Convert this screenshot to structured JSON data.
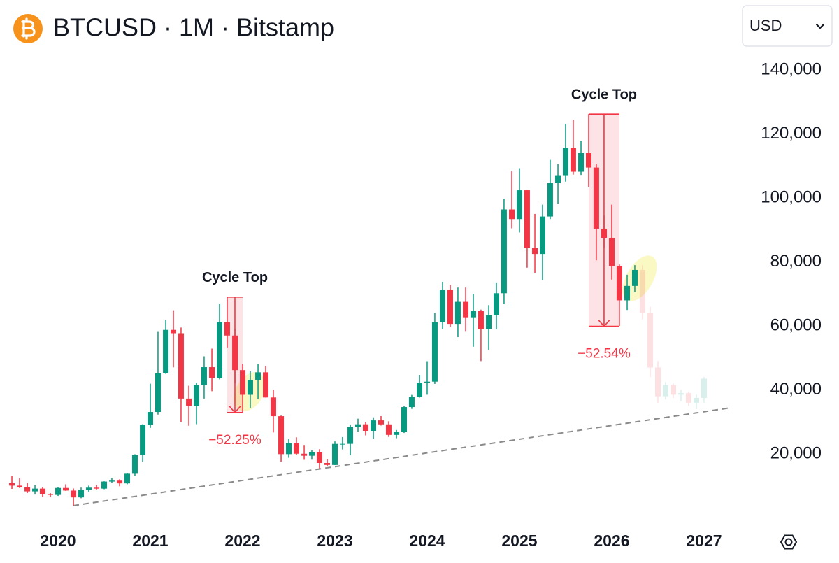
{
  "chart_data": {
    "type": "candlestick",
    "title": "BTCUSD · 1M · Bitstamp",
    "currency": "USD",
    "up_color": "#089981",
    "down_color": "#f23645",
    "xlim": [
      2019.371,
      2027.326
    ],
    "xticks": [
      2020,
      2021,
      2022,
      2023,
      2024,
      2025,
      2026,
      2027
    ],
    "ylim": [
      0,
      145000
    ],
    "yticks": [
      {
        "value": 20000,
        "label": "20,000"
      },
      {
        "value": 40000,
        "label": "40,000"
      },
      {
        "value": 60000,
        "label": "60,000"
      },
      {
        "value": 80000,
        "label": "80,000"
      },
      {
        "value": 100000,
        "label": "100,000"
      },
      {
        "value": 120000,
        "label": "120,000"
      },
      {
        "value": 140000,
        "label": "140,000"
      }
    ],
    "x": [
      2019.5,
      2019.583,
      2019.667,
      2019.75,
      2019.833,
      2019.917,
      2020.0,
      2020.083,
      2020.167,
      2020.25,
      2020.333,
      2020.417,
      2020.5,
      2020.583,
      2020.667,
      2020.75,
      2020.833,
      2020.917,
      2021.0,
      2021.083,
      2021.167,
      2021.25,
      2021.333,
      2021.417,
      2021.5,
      2021.583,
      2021.667,
      2021.75,
      2021.833,
      2021.917,
      2022.0,
      2022.083,
      2022.167,
      2022.25,
      2022.333,
      2022.417,
      2022.5,
      2022.583,
      2022.667,
      2022.75,
      2022.833,
      2022.917,
      2023.0,
      2023.083,
      2023.167,
      2023.25,
      2023.333,
      2023.417,
      2023.5,
      2023.583,
      2023.667,
      2023.75,
      2023.833,
      2023.917,
      2024.0,
      2024.083,
      2024.167,
      2024.25,
      2024.333,
      2024.417,
      2024.5,
      2024.583,
      2024.667,
      2024.75,
      2024.833,
      2024.917,
      2025.0,
      2025.083,
      2025.167,
      2025.25,
      2025.333,
      2025.417,
      2025.5,
      2025.583,
      2025.667,
      2025.75,
      2025.833,
      2025.917,
      2026.0,
      2026.083,
      2026.167,
      2026.25
    ],
    "open": [
      10820,
      10080,
      9590,
      8290,
      9150,
      7540,
      7190,
      9350,
      8540,
      6410,
      8630,
      9450,
      9140,
      11350,
      11650,
      10780,
      13800,
      19700,
      28990,
      33110,
      45160,
      58760,
      57720,
      37300,
      35040,
      41500,
      47100,
      43800,
      61300,
      57000,
      46200,
      38480,
      43180,
      45500,
      37640,
      31790,
      19930,
      23300,
      20050,
      19420,
      20490,
      17160,
      16540,
      23120,
      23140,
      28470,
      29250,
      27220,
      30480,
      29230,
      25940,
      26960,
      34640,
      37720,
      42280,
      42580,
      61170,
      71330,
      60640,
      67530,
      62700,
      64620,
      58970,
      63330,
      70220,
      96400,
      93400,
      102400,
      84300,
      82500,
      94200,
      104600,
      107100,
      115700,
      108200,
      114000,
      109500,
      90400,
      87500,
      78700,
      68000,
      72500
    ],
    "high": [
      13200,
      12330,
      10920,
      10370,
      9510,
      7740,
      9580,
      10500,
      9190,
      9460,
      10080,
      10380,
      11440,
      12480,
      12070,
      14100,
      19900,
      29300,
      41950,
      58350,
      61780,
      64900,
      59500,
      41300,
      42300,
      50500,
      52900,
      67000,
      69000,
      59100,
      47990,
      45800,
      48190,
      47450,
      40000,
      31990,
      24670,
      25200,
      22800,
      21100,
      21470,
      18390,
      23900,
      25270,
      29200,
      31000,
      29840,
      31430,
      31800,
      30200,
      27480,
      35000,
      38440,
      44700,
      48970,
      64000,
      73800,
      72800,
      71990,
      72000,
      70000,
      65100,
      66500,
      73600,
      99800,
      108300,
      109300,
      102500,
      95000,
      97900,
      111900,
      110500,
      123200,
      124400,
      117900,
      126200,
      110600,
      94500,
      97900,
      79200,
      76000,
      79000
    ],
    "low": [
      9070,
      9330,
      7750,
      7300,
      6520,
      6430,
      6870,
      8450,
      3850,
      6150,
      8100,
      8900,
      8970,
      10900,
      9880,
      10530,
      13220,
      17600,
      28130,
      32300,
      45000,
      47050,
      30000,
      28800,
      29280,
      37300,
      39600,
      43300,
      53250,
      42000,
      32900,
      34300,
      37150,
      37600,
      26700,
      17600,
      18780,
      19600,
      18150,
      18200,
      15480,
      16260,
      16500,
      21400,
      19550,
      26940,
      25800,
      24750,
      28860,
      25300,
      24900,
      26540,
      34070,
      37600,
      38500,
      41880,
      59000,
      59600,
      56500,
      58400,
      53500,
      49000,
      52550,
      58900,
      66800,
      90500,
      89200,
      78200,
      76600,
      74400,
      93400,
      98200,
      105100,
      107300,
      107200,
      103500,
      80500,
      84400,
      74500,
      60000,
      65000,
      70500
    ],
    "close": [
      10080,
      9590,
      8290,
      9150,
      7540,
      7190,
      9350,
      8540,
      6410,
      8630,
      9450,
      9140,
      11350,
      11650,
      10780,
      13800,
      19700,
      28990,
      33110,
      45160,
      58760,
      57720,
      37300,
      35040,
      41500,
      47100,
      43800,
      61300,
      57000,
      46200,
      38480,
      43180,
      45500,
      37640,
      31790,
      19930,
      23300,
      20050,
      19420,
      20490,
      17160,
      16540,
      23120,
      23140,
      28470,
      29250,
      27220,
      30480,
      29230,
      25940,
      26960,
      34640,
      37720,
      42280,
      42580,
      61170,
      71330,
      60640,
      67530,
      62700,
      64620,
      58970,
      63330,
      70220,
      96400,
      93400,
      102400,
      84300,
      82500,
      94200,
      104600,
      107100,
      115700,
      108200,
      114000,
      109500,
      90400,
      87500,
      78700,
      68000,
      72500,
      77500
    ],
    "projection": {
      "x": [
        2026.333,
        2026.417,
        2026.5,
        2026.583,
        2026.667,
        2026.75,
        2026.833,
        2026.917,
        2027.0
      ],
      "open": [
        77500,
        64000,
        47000,
        38000,
        41500,
        38500,
        39000,
        36000,
        37500
      ],
      "high": [
        79000,
        66000,
        49000,
        42500,
        42000,
        40000,
        39500,
        38500,
        44000
      ],
      "low": [
        62000,
        44000,
        36000,
        37000,
        37500,
        36500,
        35000,
        34000,
        36000
      ],
      "close": [
        64000,
        47000,
        38000,
        41500,
        38500,
        39000,
        36000,
        37500,
        43500
      ]
    },
    "trendline": {
      "x": [
        2020.167,
        2027.29
      ],
      "y": [
        3850,
        34430
      ]
    },
    "annotations": [
      {
        "label": "Cycle Top",
        "x": [
          2021.833,
          2022.0
        ],
        "top": 69000,
        "bottom": 32950,
        "change_label": "−52.25%"
      },
      {
        "label": "Cycle Top",
        "x": [
          2025.75,
          2026.083
        ],
        "top": 126200,
        "bottom": 59900,
        "change_label": "−52.54%"
      }
    ]
  }
}
